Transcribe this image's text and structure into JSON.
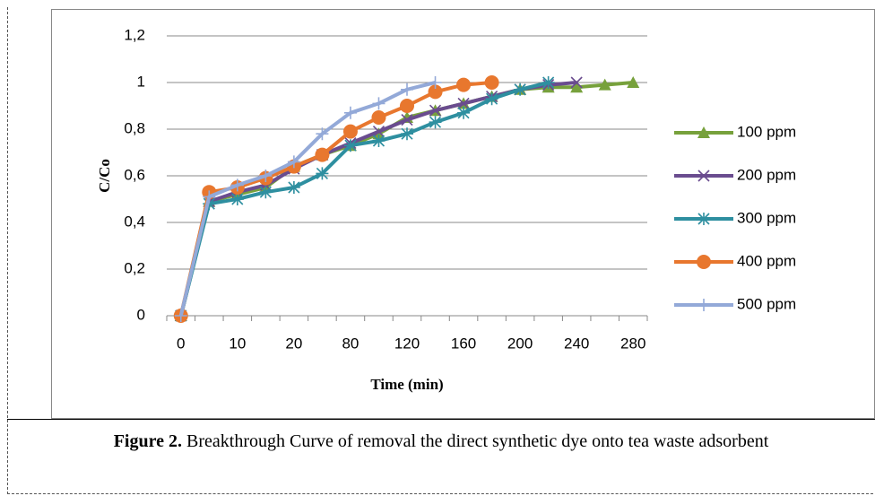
{
  "chart_data": {
    "type": "line",
    "y_label": "C/Co",
    "x_label": "Time (min)",
    "categories": [
      "0",
      null,
      "10",
      null,
      "20",
      null,
      "80",
      null,
      "120",
      null,
      "160",
      null,
      "200",
      null,
      "240",
      null,
      "280"
    ],
    "ylim": [
      0,
      1.2
    ],
    "yticks": [
      0,
      {
        "value": 0.2,
        "label": "0,2"
      },
      {
        "value": 0.4,
        "label": "0,4"
      },
      {
        "value": 0.6,
        "label": "0,6"
      },
      {
        "value": 0.8,
        "label": "0,8"
      },
      1,
      {
        "value": 1.2,
        "label": "1,2"
      }
    ],
    "grid": true,
    "legend": "right",
    "series": [
      {
        "name": "100 ppm",
        "color": "#77a13c",
        "marker": "triangle",
        "values": [
          0,
          0.49,
          0.52,
          0.55,
          0.64,
          0.69,
          0.73,
          0.78,
          0.85,
          0.88,
          0.91,
          0.94,
          0.97,
          0.98,
          0.98,
          0.99,
          1.0
        ]
      },
      {
        "name": "200 ppm",
        "color": "#6a4c8f",
        "marker": "x",
        "values": [
          0,
          0.49,
          0.53,
          0.56,
          0.63,
          0.69,
          0.74,
          0.79,
          0.84,
          0.88,
          0.91,
          0.94,
          0.97,
          0.99,
          1.0,
          null,
          null
        ]
      },
      {
        "name": "300 ppm",
        "color": "#2e8fa0",
        "marker": "star",
        "values": [
          0,
          0.48,
          0.5,
          0.53,
          0.55,
          0.61,
          0.73,
          0.75,
          0.78,
          0.83,
          0.87,
          0.93,
          0.97,
          1.0,
          null,
          null,
          null
        ]
      },
      {
        "name": "400 ppm",
        "color": "#e8772e",
        "marker": "circle",
        "values": [
          0,
          0.53,
          0.55,
          0.59,
          0.64,
          0.69,
          0.79,
          0.85,
          0.9,
          0.96,
          0.99,
          1.0,
          null,
          null,
          null,
          null,
          null
        ]
      },
      {
        "name": "500 ppm",
        "color": "#93a9d8",
        "marker": "plus",
        "values": [
          0,
          0.51,
          0.56,
          0.6,
          0.66,
          0.78,
          0.87,
          0.91,
          0.97,
          1.0,
          null,
          null,
          null,
          null,
          null,
          null,
          null
        ]
      }
    ]
  },
  "caption": {
    "label": "Figure 2.",
    "text": "Breakthrough Curve of removal the direct synthetic dye onto tea waste adsorbent"
  }
}
